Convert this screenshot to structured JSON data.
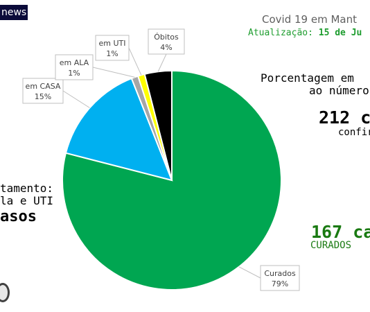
{
  "header": {
    "news_badge": "news",
    "title": "Covid 19 em Mant",
    "update_prefix": "Atualização:",
    "update_date": "15 de Ju"
  },
  "summary": {
    "pct_line1": "Porcentagem em",
    "pct_line2": "ao número",
    "confirmed_number": "212 c",
    "confirmed_label": "confir",
    "left_line1": "tamento:",
    "left_line2": "la e UTI",
    "left_line3": "asos",
    "cured_number": "167 ca",
    "cured_label": "CURADOS"
  },
  "chart_data": {
    "type": "pie",
    "slices": [
      {
        "label": "Curados",
        "value": 79,
        "display": "79%",
        "color": "#00a651"
      },
      {
        "label": "em CASA",
        "value": 15,
        "display": "15%",
        "color": "#00b0f0"
      },
      {
        "label": "em ALA",
        "value": 1,
        "display": "1%",
        "color": "#a6a6a6"
      },
      {
        "label": "em UTI",
        "value": 1,
        "display": "1%",
        "color": "#ffff00"
      },
      {
        "label": "Óbitos",
        "value": 4,
        "display": "4%",
        "color": "#000000"
      }
    ]
  },
  "colors": {
    "update_green": "#1e9d2f",
    "cured_green": "#1a7a12",
    "title_gray": "#606060"
  }
}
